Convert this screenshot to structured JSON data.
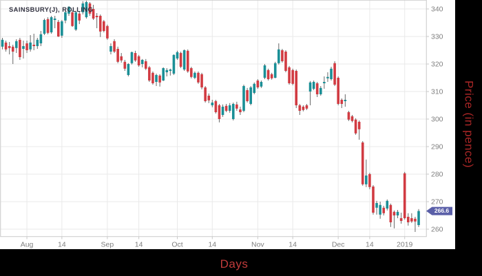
{
  "title": "SAINSBURY(J), ROLLING",
  "axis_titles": {
    "x": "Days",
    "y": "Price (in pence)"
  },
  "last_price_badge": {
    "value": "266.6",
    "bg": "#5a5fa8",
    "text_color": "#ffffff"
  },
  "colors": {
    "up": "#1a8f96",
    "down": "#d13b42",
    "wick": "#666666",
    "grid": "#e9e9e9",
    "border": "#c9c9c9",
    "tick_text": "#7f7f7f",
    "title_text": "#30303f",
    "panel_bg": "#ffffff",
    "frame_bg": "#000000",
    "x_title_color": "#c23b3b",
    "y_title_color": "#a82626",
    "badge_bg": "#5a5fa8"
  },
  "chart_data": {
    "type": "candlestick",
    "title": "SAINSBURY(J), ROLLING",
    "xlabel": "Days",
    "ylabel": "Price (in pence)",
    "ylim": [
      257.5,
      343.25
    ],
    "grid": true,
    "y_ticks": [
      260,
      270,
      280,
      290,
      300,
      310,
      320,
      330,
      340
    ],
    "x_ticks": [
      {
        "label": "Aug",
        "index": 7
      },
      {
        "label": "14",
        "index": 17
      },
      {
        "label": "Sep",
        "index": 30
      },
      {
        "label": "14",
        "index": 39
      },
      {
        "label": "Oct",
        "index": 50
      },
      {
        "label": "14",
        "index": 60
      },
      {
        "label": "Nov",
        "index": 73
      },
      {
        "label": "14",
        "index": 83
      },
      {
        "label": "Dec",
        "index": 96
      },
      {
        "label": "14",
        "index": 105
      },
      {
        "label": "2019",
        "index": 115
      }
    ],
    "last_close": 266.6,
    "ohlc": [
      [
        326.3,
        329.5,
        325.3,
        328.8
      ],
      [
        327.8,
        328.5,
        324.5,
        325.3
      ],
      [
        326.5,
        328.0,
        323.5,
        325.8
      ],
      [
        326.3,
        327.0,
        320.0,
        324.5
      ],
      [
        325.8,
        329.0,
        324.0,
        328.3
      ],
      [
        328.8,
        329.5,
        321.5,
        322.5
      ],
      [
        325.5,
        328.5,
        322.0,
        326.5
      ],
      [
        327.5,
        328.5,
        324.0,
        325.0
      ],
      [
        325.3,
        330.5,
        324.5,
        327.8
      ],
      [
        327.0,
        331.0,
        325.0,
        326.5
      ],
      [
        326.5,
        329.5,
        325.5,
        328.8
      ],
      [
        327.5,
        332.0,
        326.5,
        330.8
      ],
      [
        331.0,
        336.5,
        330.5,
        336.0
      ],
      [
        336.3,
        337.0,
        330.8,
        331.3
      ],
      [
        331.5,
        337.5,
        331.0,
        337.0
      ],
      [
        336.0,
        337.5,
        333.0,
        336.5
      ],
      [
        335.3,
        336.0,
        329.8,
        330.0
      ],
      [
        330.3,
        336.0,
        329.5,
        335.5
      ],
      [
        335.8,
        339.3,
        334.8,
        338.8
      ],
      [
        338.3,
        341.0,
        337.5,
        340.8
      ],
      [
        338.8,
        339.5,
        333.5,
        333.8
      ],
      [
        332.5,
        339.3,
        332.0,
        338.8
      ],
      [
        338.3,
        339.0,
        334.5,
        335.8
      ],
      [
        338.8,
        342.8,
        338.0,
        342.0
      ],
      [
        337.0,
        343.0,
        336.5,
        342.5
      ],
      [
        342.0,
        342.5,
        337.5,
        338.3
      ],
      [
        340.0,
        341.5,
        336.0,
        336.5
      ],
      [
        337.5,
        338.5,
        333.0,
        337.0
      ],
      [
        337.5,
        338.0,
        329.8,
        331.8
      ],
      [
        335.5,
        336.0,
        331.5,
        332.0
      ],
      [
        333.8,
        334.3,
        328.8,
        329.3
      ],
      [
        324.5,
        327.5,
        323.5,
        326.5
      ],
      [
        328.3,
        329.0,
        324.0,
        324.5
      ],
      [
        325.5,
        326.3,
        320.3,
        320.8
      ],
      [
        322.8,
        324.0,
        320.5,
        321.3
      ],
      [
        320.8,
        321.5,
        317.5,
        318.3
      ],
      [
        316.0,
        320.3,
        315.5,
        320.0
      ],
      [
        320.3,
        324.5,
        319.8,
        324.3
      ],
      [
        324.0,
        324.8,
        320.8,
        321.3
      ],
      [
        322.8,
        323.3,
        319.0,
        319.5
      ],
      [
        320.0,
        321.8,
        318.8,
        321.5
      ],
      [
        321.0,
        321.8,
        317.8,
        318.3
      ],
      [
        318.8,
        319.3,
        313.5,
        314.0
      ],
      [
        316.8,
        317.3,
        312.5,
        313.0
      ],
      [
        313.5,
        316.5,
        312.0,
        316.0
      ],
      [
        315.8,
        316.3,
        311.8,
        313.3
      ],
      [
        314.0,
        318.8,
        313.8,
        318.5
      ],
      [
        317.0,
        318.5,
        315.5,
        317.8
      ],
      [
        317.5,
        318.3,
        315.8,
        318.0
      ],
      [
        316.5,
        323.5,
        316.0,
        323.3
      ],
      [
        322.0,
        324.8,
        321.5,
        324.3
      ],
      [
        324.0,
        324.5,
        318.5,
        319.0
      ],
      [
        318.0,
        325.3,
        317.5,
        325.0
      ],
      [
        324.8,
        325.3,
        316.8,
        317.3
      ],
      [
        318.5,
        319.0,
        314.8,
        315.3
      ],
      [
        315.0,
        317.3,
        314.5,
        316.8
      ],
      [
        316.8,
        317.3,
        312.8,
        313.3
      ],
      [
        316.3,
        316.8,
        310.8,
        311.5
      ],
      [
        311.5,
        312.0,
        306.0,
        306.5
      ],
      [
        308.5,
        309.3,
        305.8,
        306.8
      ],
      [
        305.0,
        307.0,
        304.3,
        306.0
      ],
      [
        306.5,
        307.0,
        302.0,
        302.5
      ],
      [
        305.0,
        305.5,
        298.8,
        300.0
      ],
      [
        301.5,
        305.3,
        300.8,
        304.5
      ],
      [
        304.8,
        305.5,
        302.5,
        303.0
      ],
      [
        303.0,
        305.8,
        302.3,
        305.0
      ],
      [
        300.0,
        306.0,
        299.5,
        305.5
      ],
      [
        305.3,
        306.3,
        303.0,
        303.8
      ],
      [
        303.5,
        304.5,
        301.5,
        302.5
      ],
      [
        303.0,
        312.5,
        302.5,
        312.0
      ],
      [
        310.5,
        311.3,
        306.0,
        306.5
      ],
      [
        305.5,
        312.0,
        305.0,
        311.5
      ],
      [
        309.5,
        313.3,
        309.0,
        312.8
      ],
      [
        314.0,
        314.5,
        311.0,
        311.5
      ],
      [
        311.8,
        314.0,
        311.3,
        313.5
      ],
      [
        315.0,
        320.0,
        314.5,
        319.5
      ],
      [
        317.8,
        318.3,
        314.0,
        314.5
      ],
      [
        316.3,
        316.8,
        314.3,
        314.8
      ],
      [
        315.0,
        320.8,
        314.8,
        320.3
      ],
      [
        320.3,
        327.5,
        319.8,
        325.3
      ],
      [
        325.0,
        325.5,
        320.5,
        321.0
      ],
      [
        324.5,
        325.0,
        317.0,
        317.5
      ],
      [
        318.8,
        319.3,
        312.5,
        313.0
      ],
      [
        317.8,
        318.3,
        312.3,
        312.8
      ],
      [
        317.5,
        318.0,
        304.0,
        305.0
      ],
      [
        305.0,
        305.5,
        301.5,
        303.0
      ],
      [
        304.5,
        305.0,
        302.8,
        303.3
      ],
      [
        305.0,
        305.5,
        303.3,
        303.8
      ],
      [
        310.0,
        313.8,
        305.0,
        313.3
      ],
      [
        311.0,
        314.0,
        310.5,
        313.5
      ],
      [
        313.0,
        313.5,
        308.0,
        309.0
      ],
      [
        309.0,
        312.0,
        308.5,
        311.3
      ],
      [
        313.0,
        315.5,
        311.0,
        313.5
      ],
      [
        314.8,
        317.0,
        313.5,
        315.3
      ],
      [
        314.5,
        319.0,
        314.0,
        318.3
      ],
      [
        320.3,
        321.0,
        312.0,
        312.5
      ],
      [
        315.0,
        315.5,
        305.0,
        305.5
      ],
      [
        307.0,
        307.5,
        304.0,
        305.5
      ],
      [
        306.5,
        309.0,
        304.5,
        307.0
      ],
      [
        302.5,
        303.0,
        299.3,
        299.8
      ],
      [
        301.0,
        301.5,
        298.8,
        299.3
      ],
      [
        299.8,
        300.3,
        294.3,
        294.8
      ],
      [
        299.0,
        299.5,
        292.5,
        296.3
      ],
      [
        291.5,
        292.0,
        275.8,
        276.3
      ],
      [
        276.3,
        285.3,
        275.3,
        279.5
      ],
      [
        280.0,
        280.5,
        274.5,
        275.3
      ],
      [
        275.5,
        276.0,
        265.3,
        266.0
      ],
      [
        267.8,
        270.3,
        265.3,
        269.5
      ],
      [
        265.3,
        270.0,
        263.8,
        268.8
      ],
      [
        267.8,
        268.5,
        265.0,
        265.8
      ],
      [
        267.5,
        270.8,
        266.8,
        270.3
      ],
      [
        268.8,
        269.3,
        260.8,
        262.5
      ],
      [
        266.3,
        266.8,
        260.3,
        265.0
      ],
      [
        265.0,
        267.0,
        264.0,
        266.3
      ],
      [
        264.0,
        266.0,
        262.0,
        263.0
      ],
      [
        280.3,
        280.8,
        263.5,
        264.0
      ],
      [
        264.5,
        265.8,
        261.3,
        262.5
      ],
      [
        264.0,
        265.8,
        262.3,
        262.8
      ],
      [
        263.8,
        264.5,
        259.0,
        262.8
      ],
      [
        261.5,
        267.3,
        260.8,
        266.6
      ]
    ]
  }
}
